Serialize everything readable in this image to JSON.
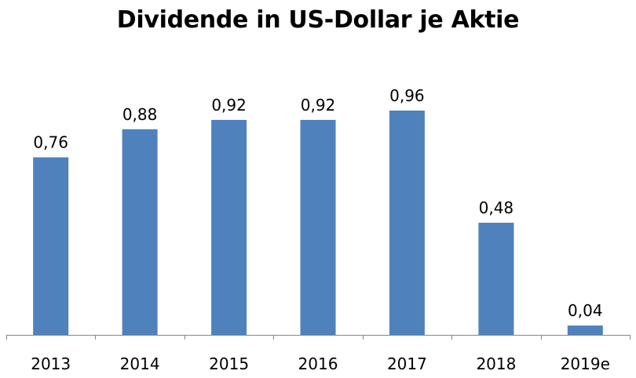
{
  "chart_data": {
    "type": "bar",
    "title": "Dividende in US-Dollar je Aktie",
    "categories": [
      "2013",
      "2014",
      "2015",
      "2016",
      "2017",
      "2018",
      "2019e"
    ],
    "values": [
      0.76,
      0.88,
      0.92,
      0.92,
      0.96,
      0.48,
      0.04
    ],
    "value_labels": [
      "0,76",
      "0,88",
      "0,92",
      "0,92",
      "0,96",
      "0,48",
      "0,04"
    ],
    "xlabel": "",
    "ylabel": "",
    "ylim": [
      0,
      1.1
    ],
    "grid": false,
    "legend": "none",
    "bar_color": "#4F81BD"
  }
}
